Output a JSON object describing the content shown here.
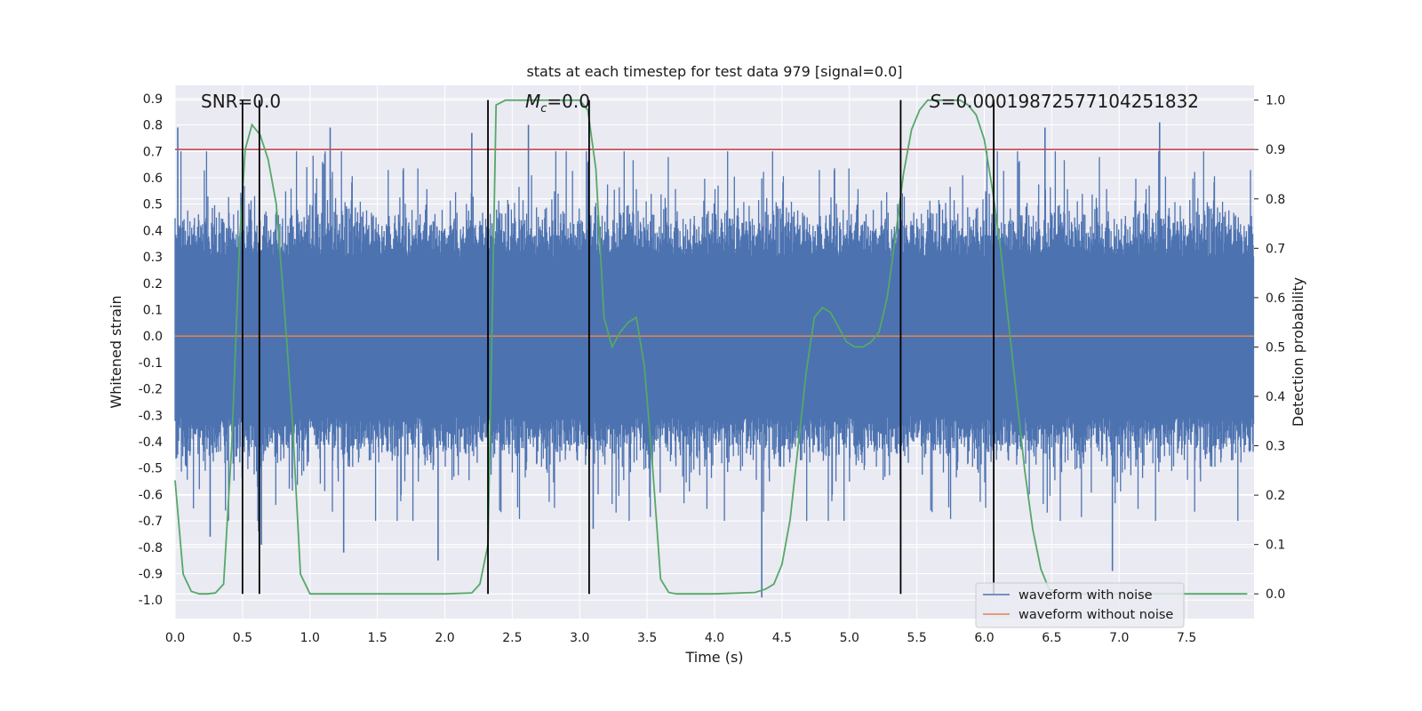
{
  "colors": {
    "background": "#ffffff",
    "plot_area": "#eaeaf2",
    "grid": "#ffffff",
    "noisy": "#4c72b0",
    "clean": "#dd8452",
    "probability": "#55a868",
    "threshold": "#c44e52",
    "event_lines": "#000000"
  },
  "chart_data": {
    "type": "line",
    "title": "stats at each timestep for test data 979 [signal=0.0]",
    "xlabel": "Time (s)",
    "ylabel_left": "Whitened strain",
    "ylabel_right": "Detection probability",
    "xlim": [
      0.0,
      8.0
    ],
    "ylim_left": [
      -1.07,
      0.95
    ],
    "ylim_right": [
      -0.05,
      1.03
    ],
    "x_ticks": [
      "0.0",
      "0.5",
      "1.0",
      "1.5",
      "2.0",
      "2.5",
      "3.0",
      "3.5",
      "4.0",
      "4.5",
      "5.0",
      "5.5",
      "6.0",
      "6.5",
      "7.0",
      "7.5"
    ],
    "y_left_ticks": [
      "0.9",
      "0.8",
      "0.7",
      "0.6",
      "0.5",
      "0.4",
      "0.3",
      "0.2",
      "0.1",
      "0.0",
      "-0.1",
      "-0.2",
      "-0.3",
      "-0.4",
      "-0.5",
      "-0.6",
      "-0.7",
      "-0.8",
      "-0.9",
      "-1.0"
    ],
    "y_right_ticks": [
      "1.0",
      "0.9",
      "0.8",
      "0.7",
      "0.6",
      "0.5",
      "0.4",
      "0.3",
      "0.2",
      "0.1",
      "0.0"
    ],
    "annotations": {
      "snr": "SNR=0.0",
      "mc_symbol": "M",
      "mc_sub": "c",
      "mc_value": "=0.0",
      "s_symbol": "S",
      "s_value": "=0.00019872577104251832"
    },
    "threshold": 0.9,
    "event_lines_x": [
      0.5,
      0.625,
      2.32,
      3.07,
      5.38,
      6.07
    ],
    "noise_spikes": [
      {
        "x": 0.02,
        "y": 0.79
      },
      {
        "x": 0.26,
        "y": -0.76
      },
      {
        "x": 0.64,
        "y": -0.79
      },
      {
        "x": 1.15,
        "y": 0.79
      },
      {
        "x": 2.62,
        "y": 0.8
      },
      {
        "x": 2.2,
        "y": 0.77
      },
      {
        "x": 3.1,
        "y": -0.73
      },
      {
        "x": 4.35,
        "y": -0.99
      },
      {
        "x": 6.45,
        "y": 0.79
      },
      {
        "x": 6.95,
        "y": -0.89
      },
      {
        "x": 7.3,
        "y": 0.81
      },
      {
        "x": 1.95,
        "y": -0.85
      },
      {
        "x": 1.25,
        "y": -0.82
      },
      {
        "x": 3.52,
        "y": -0.61
      },
      {
        "x": 0.62,
        "y": -0.74
      }
    ],
    "series": [
      {
        "name": "waveform with noise",
        "description": "white noise band",
        "amplitude_core": 0.3,
        "amplitude_peak": 0.7
      },
      {
        "name": "waveform without noise",
        "values": "constant 0.0"
      },
      {
        "name": "detection probability",
        "x": [
          0.0,
          0.06,
          0.12,
          0.18,
          0.24,
          0.3,
          0.36,
          0.42,
          0.48,
          0.52,
          0.57,
          0.63,
          0.69,
          0.75,
          0.81,
          0.87,
          0.93,
          1.0,
          1.5,
          2.0,
          2.2,
          2.26,
          2.32,
          2.38,
          2.45,
          3.0,
          3.06,
          3.12,
          3.18,
          3.24,
          3.3,
          3.36,
          3.42,
          3.48,
          3.54,
          3.6,
          3.66,
          3.72,
          4.0,
          4.3,
          4.38,
          4.44,
          4.5,
          4.56,
          4.62,
          4.68,
          4.74,
          4.8,
          4.86,
          4.92,
          4.98,
          5.04,
          5.1,
          5.16,
          5.22,
          5.28,
          5.34,
          5.4,
          5.46,
          5.52,
          5.58,
          5.64,
          5.7,
          5.76,
          5.82,
          5.88,
          5.94,
          6.0,
          6.06,
          6.12,
          6.18,
          6.24,
          6.3,
          6.36,
          6.42,
          6.48,
          6.54,
          6.6,
          7.95
        ],
        "values": [
          0.23,
          0.04,
          0.005,
          0.0,
          0.0,
          0.002,
          0.02,
          0.3,
          0.72,
          0.9,
          0.95,
          0.93,
          0.88,
          0.79,
          0.58,
          0.35,
          0.04,
          0.0,
          0.0,
          0.0,
          0.002,
          0.02,
          0.1,
          0.99,
          1.0,
          1.0,
          0.98,
          0.86,
          0.56,
          0.5,
          0.53,
          0.55,
          0.56,
          0.46,
          0.26,
          0.03,
          0.003,
          0.0,
          0.0,
          0.003,
          0.01,
          0.02,
          0.06,
          0.15,
          0.3,
          0.45,
          0.56,
          0.58,
          0.57,
          0.54,
          0.51,
          0.5,
          0.5,
          0.51,
          0.53,
          0.6,
          0.72,
          0.85,
          0.94,
          0.98,
          1.0,
          1.0,
          1.0,
          1.0,
          1.0,
          0.99,
          0.97,
          0.92,
          0.82,
          0.7,
          0.55,
          0.4,
          0.25,
          0.13,
          0.05,
          0.01,
          0.003,
          0.0,
          0.0
        ]
      }
    ]
  }
}
